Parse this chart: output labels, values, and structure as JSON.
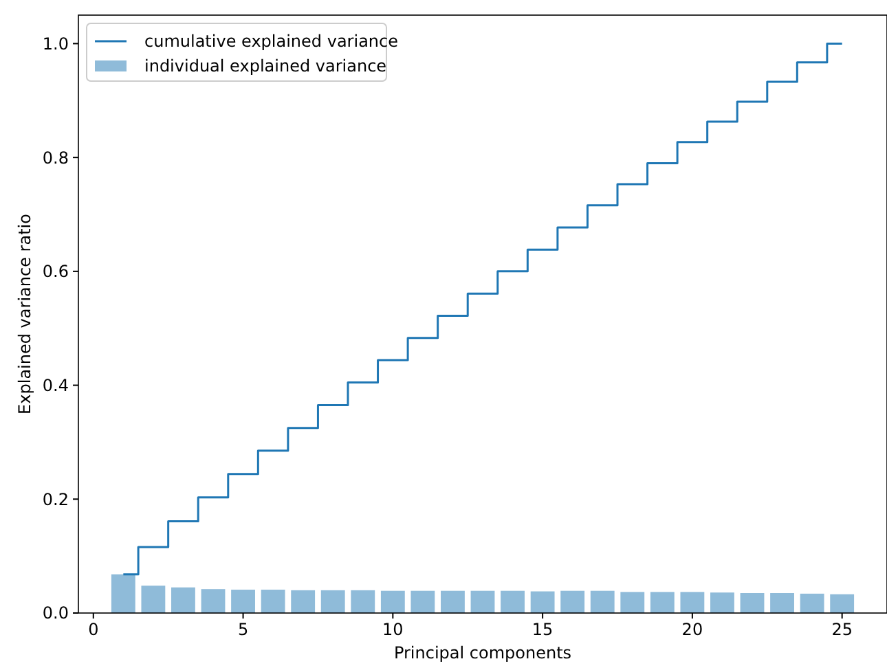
{
  "chart_data": {
    "type": "bar",
    "xlabel": "Principal components",
    "ylabel": "Explained variance ratio",
    "x": [
      1,
      2,
      3,
      4,
      5,
      6,
      7,
      8,
      9,
      10,
      11,
      12,
      13,
      14,
      15,
      16,
      17,
      18,
      19,
      20,
      21,
      22,
      23,
      24,
      25
    ],
    "series": [
      {
        "name": "cumulative explained variance",
        "type": "step",
        "color": "#1f77b4",
        "values": [
          0.068,
          0.116,
          0.161,
          0.203,
          0.244,
          0.285,
          0.325,
          0.365,
          0.405,
          0.444,
          0.483,
          0.522,
          0.561,
          0.6,
          0.638,
          0.677,
          0.716,
          0.753,
          0.79,
          0.827,
          0.863,
          0.898,
          0.933,
          0.967,
          1.0
        ]
      },
      {
        "name": "individual explained variance",
        "color": "#8fbbd9",
        "values": [
          0.068,
          0.048,
          0.045,
          0.042,
          0.041,
          0.041,
          0.04,
          0.04,
          0.04,
          0.039,
          0.039,
          0.039,
          0.039,
          0.039,
          0.038,
          0.039,
          0.039,
          0.037,
          0.037,
          0.037,
          0.036,
          0.035,
          0.035,
          0.034,
          0.033
        ]
      }
    ],
    "xlim": [
      -0.5,
      26.5
    ],
    "ylim": [
      0,
      1.05
    ],
    "xticks": [
      0,
      5,
      10,
      15,
      20,
      25
    ],
    "yticks": [
      {
        "value": 0,
        "label": "0.0"
      },
      {
        "value": 0.2,
        "label": "0.2"
      },
      {
        "value": 0.4,
        "label": "0.4"
      },
      {
        "value": 0.6,
        "label": "0.6"
      },
      {
        "value": 0.8,
        "label": "0.8"
      },
      {
        "value": 1.0,
        "label": "1.0"
      }
    ],
    "legend": "top left",
    "grid": false
  }
}
